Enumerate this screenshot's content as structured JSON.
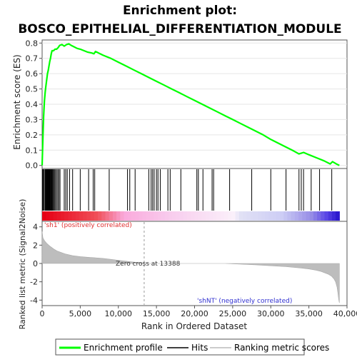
{
  "chart_data": {
    "type": "line",
    "title_line1": "Enrichment plot:",
    "title_line2": "BOSCO_EPITHELIAL_DIFFERENTIATION_MODULE",
    "ylabel_top": "Enrichment score (ES)",
    "ylabel_bottom": "Ranked list metric (Signal2Noise)",
    "xlabel": "Rank in Ordered Dataset",
    "xlim": [
      0,
      40000
    ],
    "x_ticks": [
      0,
      5000,
      10000,
      15000,
      20000,
      25000,
      30000,
      35000,
      40000
    ],
    "x_tick_labels": [
      "0",
      "5,000",
      "10,000",
      "15,000",
      "20,000",
      "25,000",
      "30,000",
      "35,000",
      "40,000"
    ],
    "es_ylim": [
      -0.02,
      0.82
    ],
    "es_ticks": [
      0.0,
      0.1,
      0.2,
      0.3,
      0.4,
      0.5,
      0.6,
      0.7,
      0.8
    ],
    "es_tick_labels": [
      "0.0",
      "0.1",
      "0.2",
      "0.3",
      "0.4",
      "0.5",
      "0.6",
      "0.7",
      "0.8"
    ],
    "metric_ylim": [
      -4.6,
      4.6
    ],
    "metric_ticks": [
      -4,
      -2,
      0,
      2,
      4
    ],
    "metric_tick_labels": [
      "-4",
      "-2",
      "0",
      "2",
      "4"
    ],
    "series": [
      {
        "name": "Enrichment profile",
        "color": "#00ff00",
        "x": [
          0,
          100,
          200,
          300,
          400,
          500,
          600,
          700,
          800,
          900,
          1000,
          1100,
          1200,
          1300,
          1500,
          1700,
          1900,
          2100,
          2300,
          2600,
          2900,
          3200,
          3500,
          3800,
          4200,
          4600,
          5000,
          5500,
          6000,
          6500,
          6800,
          7000,
          7200,
          7600,
          8000,
          9000,
          10000,
          11000,
          12000,
          13000,
          14000,
          15000,
          16000,
          17000,
          18000,
          19000,
          20000,
          21000,
          22000,
          23000,
          24000,
          25000,
          26000,
          27000,
          28000,
          29000,
          30000,
          31000,
          32000,
          33000,
          33700,
          34000,
          34300,
          35000,
          36000,
          37000,
          37800,
          38100,
          38600,
          39000
        ],
        "y": [
          0.0,
          0.18,
          0.32,
          0.42,
          0.48,
          0.52,
          0.56,
          0.6,
          0.62,
          0.65,
          0.68,
          0.7,
          0.73,
          0.75,
          0.75,
          0.76,
          0.76,
          0.77,
          0.785,
          0.79,
          0.78,
          0.79,
          0.795,
          0.785,
          0.775,
          0.765,
          0.76,
          0.75,
          0.74,
          0.735,
          0.73,
          0.745,
          0.74,
          0.73,
          0.72,
          0.7,
          0.675,
          0.65,
          0.625,
          0.6,
          0.575,
          0.55,
          0.525,
          0.5,
          0.475,
          0.45,
          0.425,
          0.4,
          0.375,
          0.35,
          0.325,
          0.3,
          0.275,
          0.25,
          0.225,
          0.2,
          0.17,
          0.145,
          0.12,
          0.095,
          0.075,
          0.08,
          0.085,
          0.07,
          0.05,
          0.03,
          0.01,
          0.025,
          0.01,
          0.0
        ]
      }
    ],
    "hits": [
      50,
      150,
      250,
      380,
      450,
      520,
      600,
      650,
      700,
      760,
      820,
      880,
      940,
      1000,
      1080,
      1150,
      1230,
      1300,
      1400,
      1500,
      1620,
      1750,
      1900,
      2050,
      2200,
      2350,
      2900,
      3100,
      3300,
      3600,
      4000,
      5000,
      6100,
      6700,
      6900,
      8800,
      11200,
      11500,
      12200,
      14000,
      14300,
      14500,
      14700,
      15000,
      15200,
      15500,
      16500,
      16800,
      18200,
      20300,
      20500,
      21100,
      22300,
      22500,
      24600,
      27500,
      30000,
      32000,
      33700,
      34000,
      34300,
      35300,
      36400,
      38000
    ],
    "zero_cross_rank": 13388,
    "zero_cross_label": "Zero cross at 13388",
    "pos_label": "'sh1' (positively correlated)",
    "neg_label": "'shNT' (negatively correlated)",
    "metric_curve": {
      "x": [
        0,
        100,
        300,
        600,
        1000,
        1500,
        2000,
        3000,
        4000,
        5000,
        6000,
        7000,
        8000,
        9000,
        10000,
        11000,
        12000,
        13000,
        13388,
        13389,
        15000,
        18000,
        21000,
        24000,
        26000,
        28000,
        30000,
        32000,
        34000,
        35000,
        36000,
        36500,
        37000,
        37500,
        38000,
        38300,
        38500,
        38700,
        38800,
        38900,
        39000
      ],
      "y": [
        3.5,
        2.8,
        2.5,
        2.2,
        1.9,
        1.6,
        1.35,
        1.05,
        0.85,
        0.75,
        0.68,
        0.62,
        0.55,
        0.45,
        0.35,
        0.25,
        0.15,
        0.05,
        0.0,
        0.0,
        0.0,
        0.0,
        0.0,
        0.0,
        -0.08,
        -0.15,
        -0.25,
        -0.35,
        -0.5,
        -0.6,
        -0.75,
        -0.85,
        -1.0,
        -1.15,
        -1.4,
        -1.7,
        -2.0,
        -2.6,
        -3.2,
        -3.9,
        -4.3
      ]
    },
    "legend": [
      {
        "label": "Enrichment profile",
        "color": "#00ff00"
      },
      {
        "label": "Hits",
        "color": "#000000"
      },
      {
        "label": "Ranking metric scores",
        "color": "#bbbbbb"
      }
    ],
    "legend_placement": "bottom"
  }
}
